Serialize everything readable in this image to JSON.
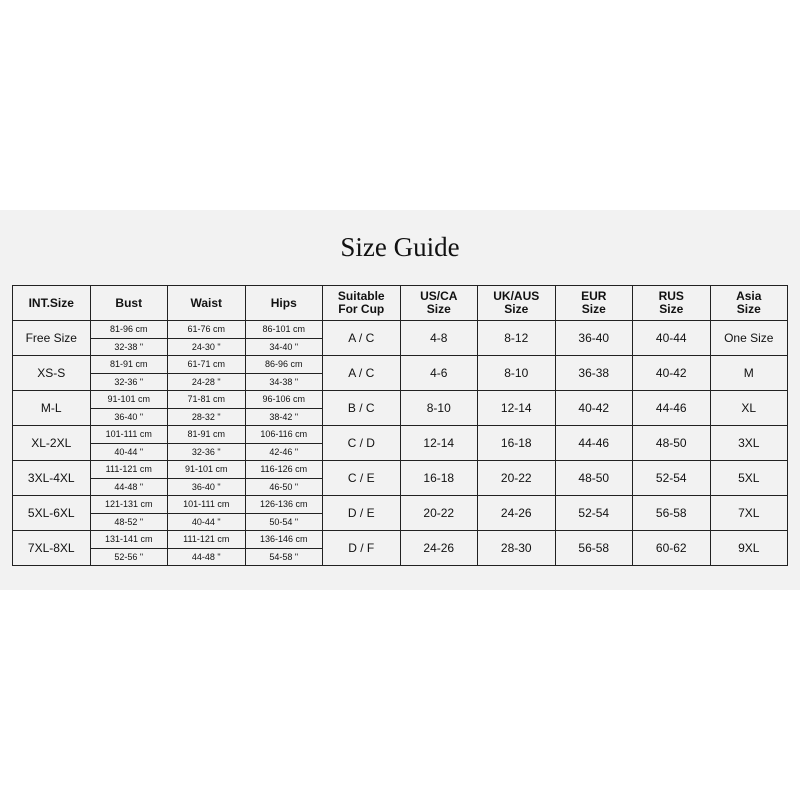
{
  "title": "Size Guide",
  "headers": [
    "INT.Size",
    "Bust",
    "Waist",
    "Hips",
    "Suitable For Cup",
    "US/CA Size",
    "UK/AUS Size",
    "EUR Size",
    "RUS Size",
    "Asia Size"
  ],
  "rows": [
    {
      "size": "Free Size",
      "bust": [
        "81-96 cm",
        "32-38 \""
      ],
      "waist": [
        "61-76 cm",
        "24-30 \""
      ],
      "hips": [
        "86-101 cm",
        "34-40 \""
      ],
      "cup": "A / C",
      "us": "4-8",
      "uk": "8-12",
      "eur": "36-40",
      "rus": "40-44",
      "asia": "One Size"
    },
    {
      "size": "XS-S",
      "bust": [
        "81-91 cm",
        "32-36 \""
      ],
      "waist": [
        "61-71 cm",
        "24-28 \""
      ],
      "hips": [
        "86-96 cm",
        "34-38 \""
      ],
      "cup": "A / C",
      "us": "4-6",
      "uk": "8-10",
      "eur": "36-38",
      "rus": "40-42",
      "asia": "M"
    },
    {
      "size": "M-L",
      "bust": [
        "91-101 cm",
        "36-40 \""
      ],
      "waist": [
        "71-81 cm",
        "28-32 \""
      ],
      "hips": [
        "96-106 cm",
        "38-42 \""
      ],
      "cup": "B / C",
      "us": "8-10",
      "uk": "12-14",
      "eur": "40-42",
      "rus": "44-46",
      "asia": "XL"
    },
    {
      "size": "XL-2XL",
      "bust": [
        "101-111 cm",
        "40-44 \""
      ],
      "waist": [
        "81-91 cm",
        "32-36 \""
      ],
      "hips": [
        "106-116 cm",
        "42-46 \""
      ],
      "cup": "C / D",
      "us": "12-14",
      "uk": "16-18",
      "eur": "44-46",
      "rus": "48-50",
      "asia": "3XL"
    },
    {
      "size": "3XL-4XL",
      "bust": [
        "111-121 cm",
        "44-48 \""
      ],
      "waist": [
        "91-101 cm",
        "36-40 \""
      ],
      "hips": [
        "116-126 cm",
        "46-50 \""
      ],
      "cup": "C / E",
      "us": "16-18",
      "uk": "20-22",
      "eur": "48-50",
      "rus": "52-54",
      "asia": "5XL"
    },
    {
      "size": "5XL-6XL",
      "bust": [
        "121-131 cm",
        "48-52 \""
      ],
      "waist": [
        "101-111 cm",
        "40-44 \""
      ],
      "hips": [
        "126-136 cm",
        "50-54 \""
      ],
      "cup": "D / E",
      "us": "20-22",
      "uk": "24-26",
      "eur": "52-54",
      "rus": "56-58",
      "asia": "7XL"
    },
    {
      "size": "7XL-8XL",
      "bust": [
        "131-141 cm",
        "52-56 \""
      ],
      "waist": [
        "111-121 cm",
        "44-48 \""
      ],
      "hips": [
        "136-146 cm",
        "54-58 \""
      ],
      "cup": "D / F",
      "us": "24-26",
      "uk": "28-30",
      "eur": "56-58",
      "rus": "60-62",
      "asia": "9XL"
    }
  ]
}
